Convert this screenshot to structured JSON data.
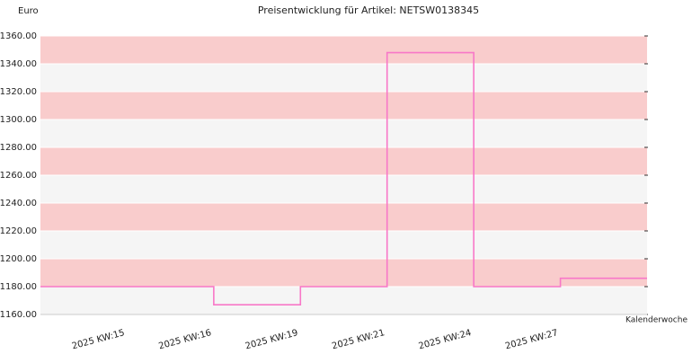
{
  "chart_data": {
    "type": "step",
    "title": "Preisentwicklung für Artikel: NETSW0138345",
    "y_label": "Euro",
    "x_label": "Kalenderwoche",
    "categories": [
      null,
      "2025 KW:15",
      "2025 KW:16",
      "2025 KW:19",
      "2025 KW:21",
      "2025 KW:24",
      "2025 KW:27"
    ],
    "values": [
      1180,
      1180,
      1167,
      1180,
      1348,
      1180,
      1186
    ],
    "color": "#f878c8",
    "band_colors": [
      "#f9cccc",
      "#f5f5f5"
    ],
    "ylim": [
      1160,
      1360
    ],
    "yticks": [
      {
        "value": 1160,
        "label": "1160.00"
      },
      {
        "value": 1180,
        "label": "1180.00"
      },
      {
        "value": 1200,
        "label": "1200.00"
      },
      {
        "value": 1220,
        "label": "1220.00"
      },
      {
        "value": 1240,
        "label": "1240.00"
      },
      {
        "value": 1260,
        "label": "1260.00"
      },
      {
        "value": 1280,
        "label": "1280.00"
      },
      {
        "value": 1300,
        "label": "1300.00"
      },
      {
        "value": 1320,
        "label": "1320.00"
      },
      {
        "value": 1340,
        "label": "1340.00"
      },
      {
        "value": 1360,
        "label": "1360.00"
      }
    ]
  }
}
